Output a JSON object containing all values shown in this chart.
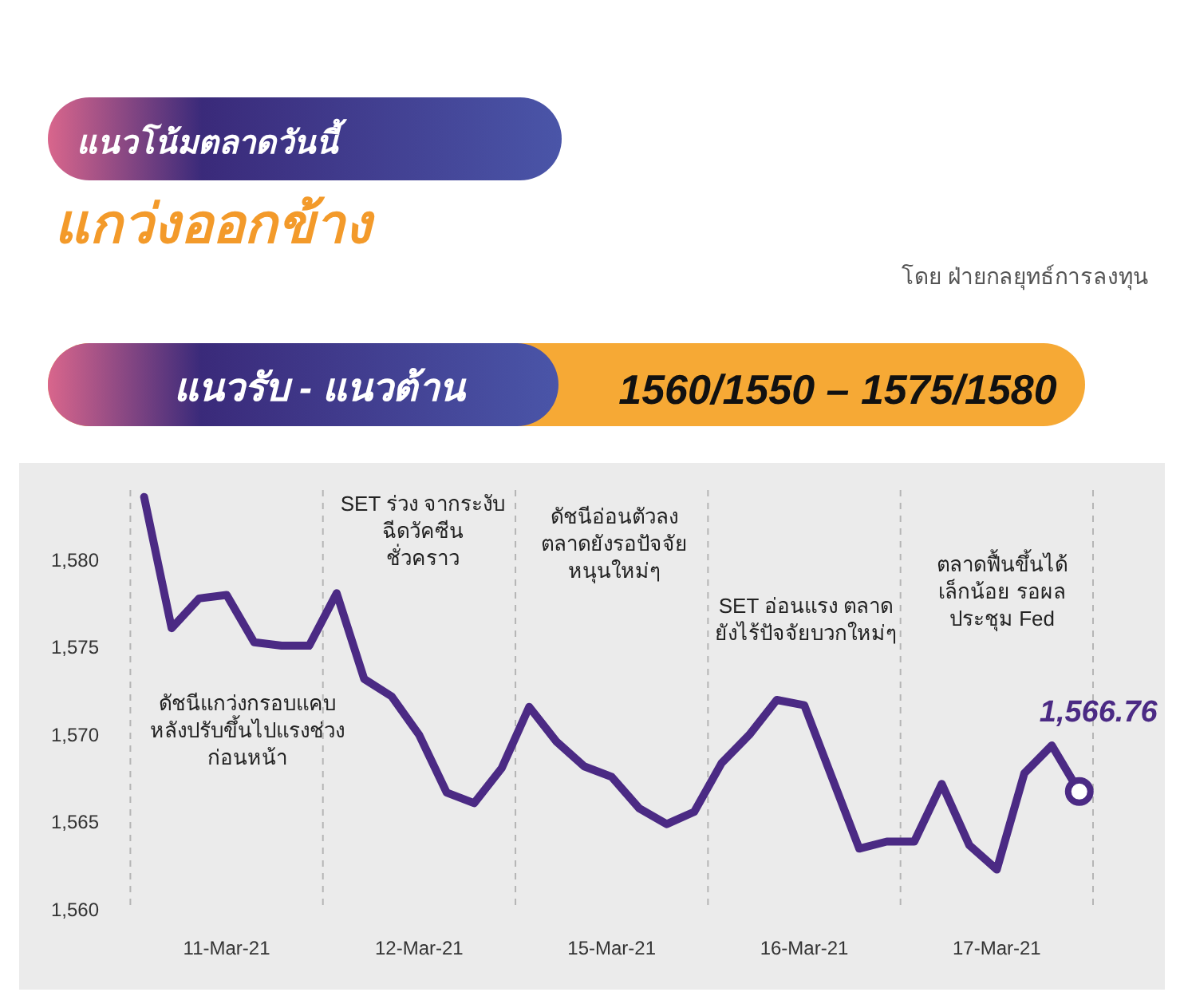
{
  "chart_data": {
    "type": "line",
    "title": "แนวโน้มตลาดวันนี้",
    "subtitle": "แกว่งออกข้าง",
    "annotations": [
      "โดย ฝ่ายกลยุทธ์การลงทุน",
      "แนวรับ - แนวต้าน",
      "1560/1550 – 1575/1580",
      "ดัชนีแกว่งกรอบแคบ\nหลังปรับขึ้นไปแรงช่วง\nก่อนหน้า",
      "SET ร่วง จากระงับ\nฉีดวัคซีน\nชั่วคราว",
      "ดัชนีอ่อนตัวลง\nตลาดยังรอปัจจัย\nหนุนใหม่ๆ",
      "SET อ่อนแรง ตลาด\nยังไร้ปัจจัยบวกใหม่ๆ",
      "ตลาดฟื้นขึ้นได้\nเล็กน้อย รอผล\nประชุม Fed"
    ],
    "categories": [
      null,
      null,
      null,
      "11-Mar-21",
      null,
      null,
      null,
      null,
      null,
      null,
      "12-Mar-21",
      null,
      null,
      null,
      null,
      null,
      null,
      "15-Mar-21",
      null,
      null,
      null,
      null,
      null,
      null,
      "16-Mar-21",
      null,
      null,
      null,
      null,
      null,
      null,
      "17-Mar-21",
      null,
      null,
      null
    ],
    "series": [
      {
        "color": "#4b2a84",
        "values": [
          1583.6,
          1576.1,
          1577.8,
          1578.0,
          1575.3,
          1575.1,
          1575.1,
          1578.1,
          1573.2,
          1572.2,
          1570.0,
          1566.7,
          1566.1,
          1568.1,
          1571.6,
          1569.6,
          1568.2,
          1567.6,
          1565.8,
          1564.9,
          1565.6,
          1568.4,
          1570.0,
          1572.0,
          1571.7,
          1567.6,
          1563.5,
          1563.9,
          1563.9,
          1567.2,
          1563.7,
          1562.3,
          1567.8,
          1569.4,
          1566.76
        ],
        "value_labels": [
          null,
          null,
          null,
          null,
          null,
          null,
          null,
          null,
          null,
          null,
          null,
          null,
          null,
          null,
          null,
          null,
          null,
          null,
          null,
          null,
          null,
          null,
          null,
          null,
          null,
          null,
          null,
          null,
          null,
          null,
          null,
          null,
          null,
          null,
          "1,566.76"
        ]
      }
    ],
    "ylim": [
      1560,
      1584
    ],
    "yticks": [
      {
        "value": 1560,
        "label": "1,560"
      },
      {
        "value": 1565,
        "label": "1,565"
      },
      {
        "value": 1570,
        "label": "1,570"
      },
      {
        "value": 1575,
        "label": "1,575"
      },
      {
        "value": 1580,
        "label": "1,580"
      }
    ],
    "grid": "x"
  }
}
